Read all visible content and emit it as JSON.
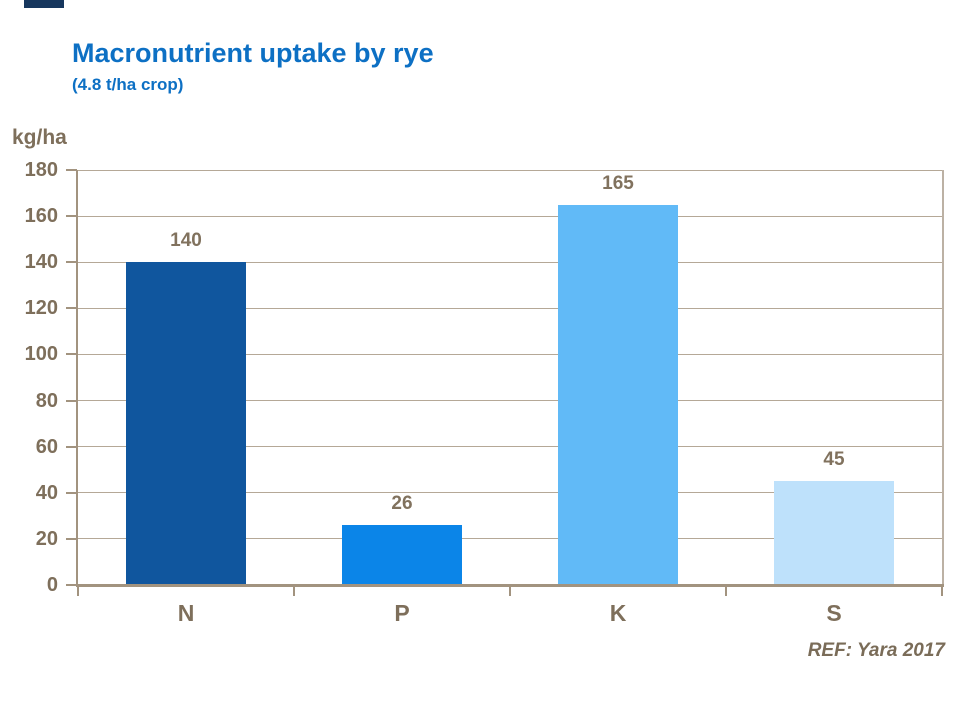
{
  "slide": {
    "title": "Macronutrient uptake by rye",
    "subtitle": "(4.8 t/ha crop)",
    "unit_label": "kg/ha",
    "ref": "REF: Yara 2017"
  },
  "colors": {
    "title_blue": "#0D70C4",
    "text_taupe": "#7E6F5B",
    "axis_line": "#A2937F",
    "gridline": "#B5A897",
    "right_border": "#BCB1A4",
    "corner_accent": "#17375E"
  },
  "chart_data": {
    "type": "bar",
    "categories": [
      "N",
      "P",
      "K",
      "S"
    ],
    "values": [
      140,
      26,
      165,
      45
    ],
    "bar_colors": [
      "#10569E",
      "#0B85E8",
      "#61BAF7",
      "#BEE1FB"
    ],
    "title": "Macronutrient uptake by rye",
    "subtitle": "(4.8 t/ha crop)",
    "xlabel": "",
    "ylabel": "kg/ha",
    "ylim": [
      0,
      180
    ],
    "ytick_step": 20,
    "grid": true,
    "legend": false,
    "annotation": "REF: Yara 2017"
  }
}
